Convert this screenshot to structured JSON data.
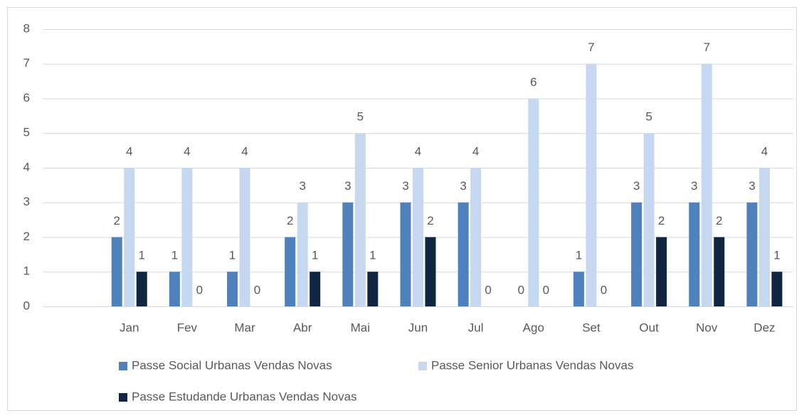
{
  "chart_data": {
    "type": "bar",
    "categories": [
      null,
      "Jan",
      "Fev",
      "Mar",
      "Abr",
      "Mai",
      "Jun",
      "Jul",
      "Ago",
      "Set",
      "Out",
      "Nov",
      "Dez"
    ],
    "series": [
      {
        "name": "Passe Social Urbanas Vendas Novas",
        "color": "#4f81bd",
        "values": [
          null,
          2,
          1,
          1,
          2,
          3,
          3,
          3,
          0,
          1,
          3,
          3,
          3
        ]
      },
      {
        "name": "Passe Senior Urbanas Vendas Novas",
        "color": "#c6d8f0",
        "values": [
          null,
          4,
          4,
          4,
          3,
          5,
          4,
          4,
          6,
          7,
          5,
          7,
          4
        ]
      },
      {
        "name": "Passe Estudande Urbanas Vendas Novas",
        "color": "#0f2540",
        "values": [
          null,
          1,
          0,
          0,
          1,
          1,
          2,
          0,
          0,
          0,
          2,
          2,
          1
        ]
      }
    ],
    "ylim": [
      0,
      8
    ],
    "yticks": [
      0,
      1,
      2,
      3,
      4,
      5,
      6,
      7,
      8
    ],
    "grid": true,
    "legend": "bottom",
    "data_labels": true
  }
}
